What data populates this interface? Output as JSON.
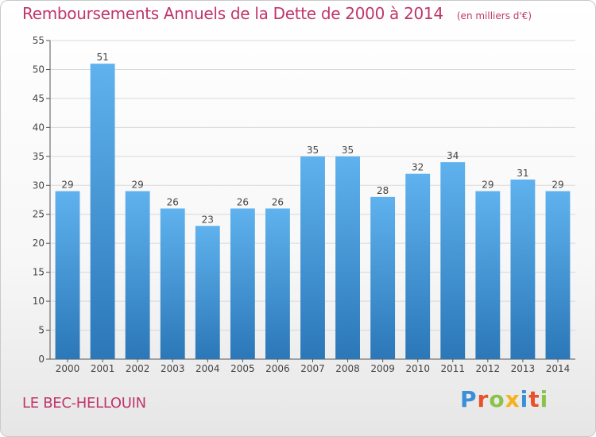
{
  "header": {
    "title": "Remboursements Annuels de la Dette de 2000 à 2014",
    "subtitle": "(en milliers d'€)"
  },
  "footer": {
    "commune": "LE BEC-HELLOUIN",
    "brand": "Proxiti",
    "brand_colors": [
      "#3a8fd6",
      "#e8522a",
      "#8bc34a",
      "#f5b21b",
      "#3a8fd6",
      "#e8522a",
      "#8bc34a"
    ]
  },
  "chart_data": {
    "type": "bar",
    "categories": [
      "2000",
      "2001",
      "2002",
      "2003",
      "2004",
      "2005",
      "2006",
      "2007",
      "2008",
      "2009",
      "2010",
      "2011",
      "2012",
      "2013",
      "2014"
    ],
    "values": [
      29,
      51,
      29,
      26,
      23,
      26,
      26,
      35,
      35,
      28,
      32,
      34,
      29,
      31,
      29
    ],
    "ylim": [
      0,
      55
    ],
    "yticks": [
      0,
      5,
      10,
      15,
      20,
      25,
      30,
      35,
      40,
      45,
      50,
      55
    ],
    "grid": true,
    "bar_color": "#4a9de0",
    "label_color": "#444444"
  }
}
